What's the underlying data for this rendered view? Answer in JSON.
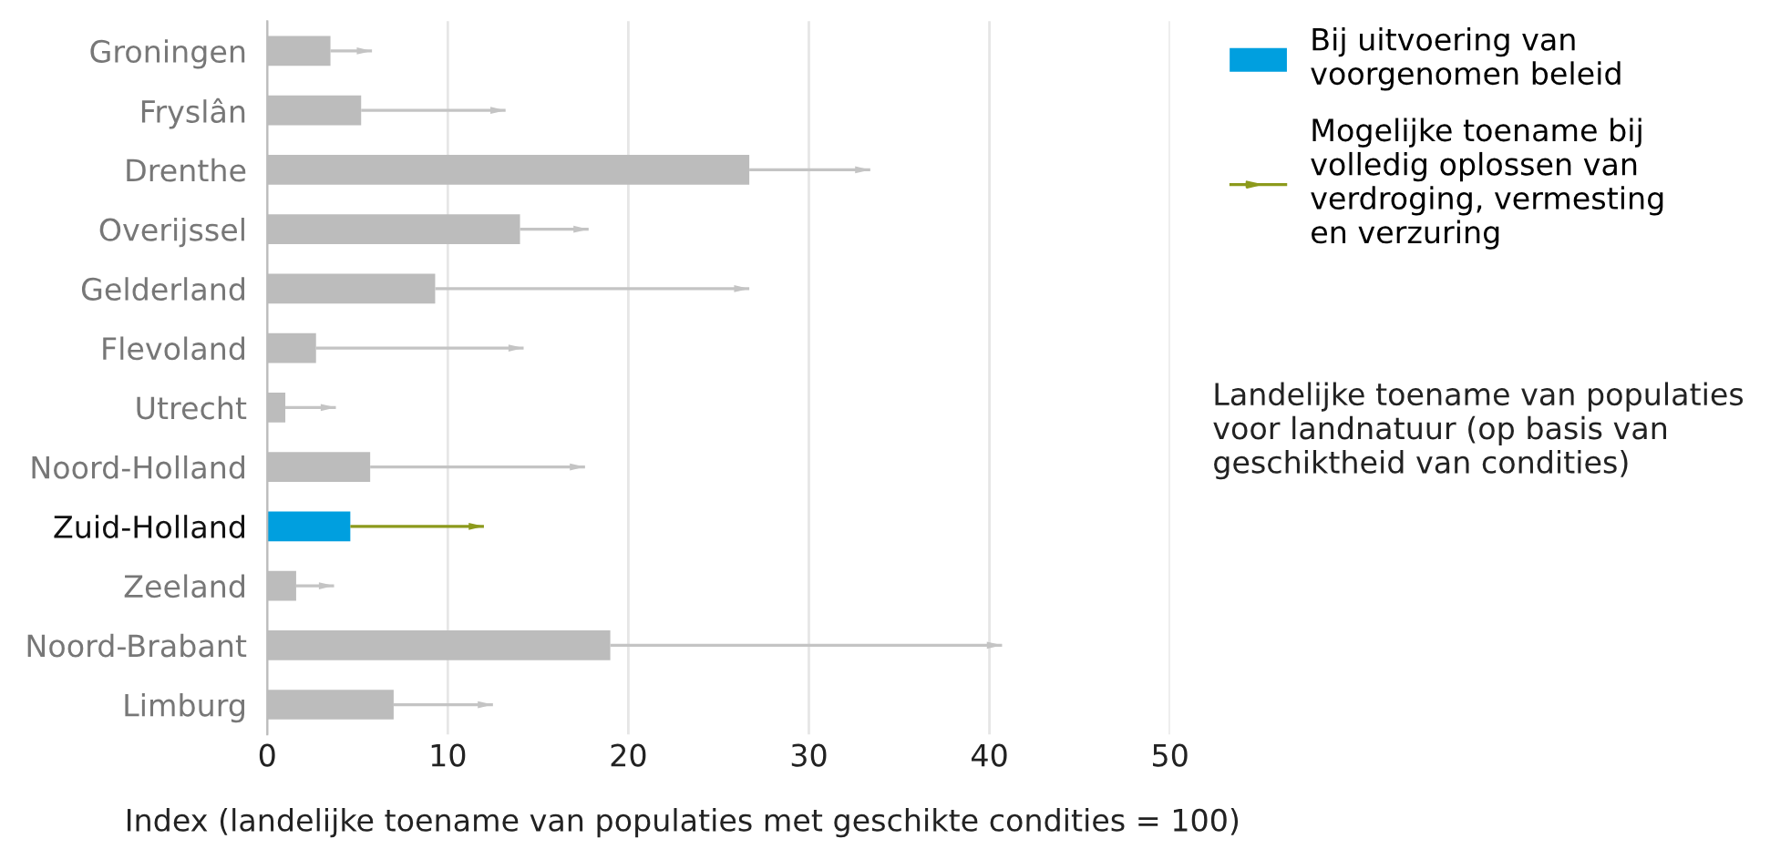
{
  "chart_data": {
    "type": "bar",
    "orientation": "horizontal",
    "stacked": true,
    "subtitle": "Landelijke toename van populaties\nvoor landnatuur (op basis van\ngeschiktheid van condities)",
    "xlabel": "Index (landelijke toename van populaties met geschikte condities = 100)",
    "categories": [
      "Groningen",
      "Fryslân",
      "Drenthe",
      "Overijssel",
      "Gelderland",
      "Flevoland",
      "Utrecht",
      "Noord-Holland",
      "Zuid-Holland",
      "Zeeland",
      "Noord-Brabant",
      "Limburg"
    ],
    "series": [
      {
        "name": "Bij uitvoering van\nvoorgenomen beleid",
        "color": "#009fdf",
        "colors": [
          "#bcbcbc",
          "#bcbcbc",
          "#bcbcbc",
          "#bcbcbc",
          "#bcbcbc",
          "#bcbcbc",
          "#bcbcbc",
          "#bcbcbc",
          "#009fdf",
          "#bcbcbc",
          "#bcbcbc",
          "#bcbcbc"
        ],
        "values": [
          3.5,
          5.2,
          26.7,
          14.0,
          9.3,
          2.7,
          1.0,
          5.7,
          4.6,
          1.6,
          19.0,
          7.0
        ]
      },
      {
        "name": "Mogelijke toename bij\nvolledig oplossen van\nverdroging, vermesting\nen verzuring",
        "marker": "triangle",
        "color": "#8c9a1c",
        "colors": [
          "#c4c4c4",
          "#c4c4c4",
          "#c4c4c4",
          "#c4c4c4",
          "#c4c4c4",
          "#c4c4c4",
          "#c4c4c4",
          "#c4c4c4",
          "#8c9a1c",
          "#c4c4c4",
          "#c4c4c4",
          "#c4c4c4"
        ],
        "values": [
          2.3,
          8.0,
          6.7,
          3.8,
          17.4,
          11.5,
          2.8,
          11.9,
          7.4,
          2.1,
          21.7,
          5.5
        ]
      }
    ],
    "xlim": [
      0,
      50
    ],
    "xticks": [
      0,
      10,
      20,
      30,
      40,
      50
    ],
    "grid": "x",
    "legend": "right"
  }
}
